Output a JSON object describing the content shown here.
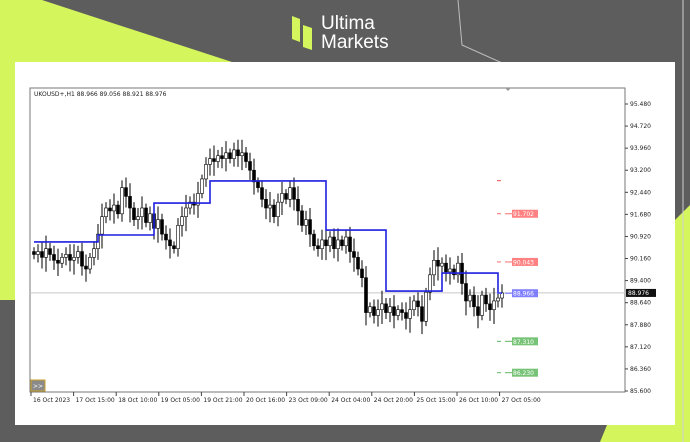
{
  "brand": {
    "line1": "Ultima",
    "line2": "Markets",
    "accent": "#d4f55c",
    "background": "#5d5d5d"
  },
  "chart_data": {
    "type": "candlestick",
    "symbol_header": "UKOUSD+,H1  88.966 89.056 88.921 88.976",
    "yticks": [
      "95.480",
      "94.720",
      "93.960",
      "93.200",
      "92.440",
      "91.680",
      "90.920",
      "90.160",
      "89.400",
      "88.640",
      "87.880",
      "87.120",
      "86.360",
      "85.600"
    ],
    "ylim": [
      85.6,
      95.48
    ],
    "xticks": [
      "16 Oct 2023",
      "17 Oct 15:00",
      "18 Oct 10:00",
      "19 Oct 05:00",
      "19 Oct 21:00",
      "20 Oct 16:00",
      "23 Oct 09:00",
      "24 Oct 04:00",
      "24 Oct 20:00",
      "25 Oct 15:00",
      "26 Oct 10:00",
      "27 Oct 05:00"
    ],
    "closes": [
      90.3,
      90.4,
      90.2,
      90.5,
      90.3,
      90.1,
      90.0,
      90.2,
      90.3,
      90.1,
      90.2,
      90.4,
      89.9,
      89.8,
      90.2,
      90.5,
      91.0,
      91.6,
      91.9,
      91.8,
      92.0,
      91.7,
      92.6,
      92.3,
      91.9,
      91.5,
      91.6,
      91.9,
      91.4,
      91.7,
      91.2,
      91.5,
      91.0,
      90.8,
      90.6,
      90.5,
      91.3,
      91.6,
      91.9,
      92.1,
      92.0,
      92.4,
      92.9,
      93.4,
      93.6,
      93.5,
      93.7,
      93.6,
      93.8,
      93.6,
      93.9,
      93.7,
      93.8,
      93.5,
      93.2,
      92.8,
      92.6,
      92.2,
      91.9,
      92.0,
      91.6,
      92.1,
      92.4,
      92.2,
      92.6,
      92.2,
      91.8,
      91.3,
      91.5,
      91.0,
      90.6,
      90.5,
      90.8,
      90.6,
      90.9,
      90.5,
      90.8,
      90.6,
      90.9,
      90.4,
      90.2,
      89.8,
      89.5,
      88.3,
      88.5,
      88.2,
      88.4,
      88.6,
      88.3,
      88.5,
      88.2,
      88.4,
      88.3,
      88.1,
      88.4,
      88.7,
      88.5,
      88.0,
      89.0,
      89.6,
      90.1,
      89.9,
      90.0,
      89.7,
      89.8,
      89.6,
      90.0,
      89.3,
      88.7,
      88.9,
      88.5,
      88.2,
      88.9,
      88.6,
      88.4,
      88.7,
      88.8,
      88.976
    ],
    "step_line": {
      "color": "#1f1fe0",
      "steps": [
        [
          0,
          16,
          90.73
        ],
        [
          16,
          30,
          90.97
        ],
        [
          30,
          44,
          92.07
        ],
        [
          44,
          73,
          92.83
        ],
        [
          73,
          88,
          91.14
        ],
        [
          88,
          102,
          89.04
        ],
        [
          102,
          116,
          89.66
        ],
        [
          116,
          117,
          88.97
        ]
      ]
    },
    "current_price": "88.976",
    "levels": [
      {
        "value": 92.84,
        "label": "",
        "color": "#ff4d4d"
      },
      {
        "value": 91.702,
        "label": "91.702",
        "color": "#ff6b6b"
      },
      {
        "value": 90.043,
        "label": "90.043",
        "color": "#ff6b6b"
      },
      {
        "value": 88.966,
        "label": "88.966",
        "color": "#6b6bff"
      },
      {
        "value": 87.31,
        "label": "87.310",
        "color": "#5fb85f"
      },
      {
        "value": 86.23,
        "label": "86.230",
        "color": "#5fb85f"
      }
    ],
    "scroll_button": ">>"
  }
}
